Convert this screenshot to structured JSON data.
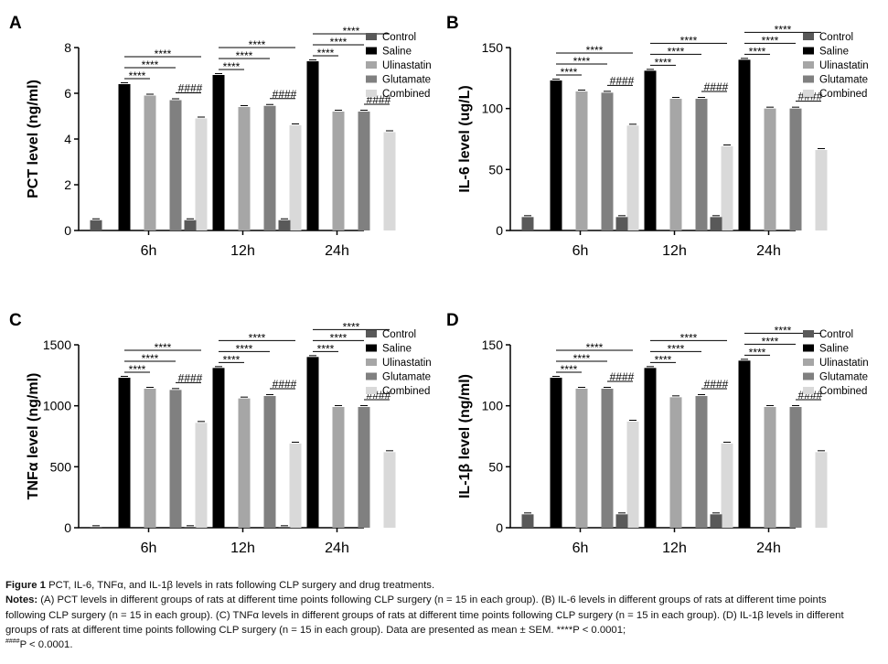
{
  "chart_data": [
    {
      "panel": "A",
      "type": "bar",
      "ylabel": "PCT level (ng/ml)",
      "ylim": [
        0,
        8
      ],
      "yticks": [
        0,
        2,
        4,
        6,
        8
      ],
      "categories": [
        "6h",
        "12h",
        "24h"
      ],
      "series": [
        {
          "name": "Control",
          "color": "#595959",
          "values": [
            0.45,
            0.45,
            0.45
          ]
        },
        {
          "name": "Saline",
          "color": "#000000",
          "values": [
            6.4,
            6.8,
            7.4
          ]
        },
        {
          "name": "Ulinastatin",
          "color": "#a6a6a6",
          "values": [
            5.9,
            5.4,
            5.2
          ]
        },
        {
          "name": "Glutamate",
          "color": "#808080",
          "values": [
            5.7,
            5.45,
            5.2
          ]
        },
        {
          "name": "Combined",
          "color": "#d9d9d9",
          "values": [
            4.9,
            4.6,
            4.3
          ]
        }
      ],
      "annotations": [
        "****",
        "****",
        "****",
        "####"
      ]
    },
    {
      "panel": "B",
      "type": "bar",
      "ylabel": "IL-6 level (ug/L)",
      "ylim": [
        0,
        150
      ],
      "yticks": [
        0,
        50,
        100,
        150
      ],
      "categories": [
        "6h",
        "12h",
        "24h"
      ],
      "series": [
        {
          "name": "Control",
          "color": "#595959",
          "values": [
            11,
            11,
            11
          ]
        },
        {
          "name": "Saline",
          "color": "#000000",
          "values": [
            123,
            131,
            140
          ]
        },
        {
          "name": "Ulinastatin",
          "color": "#a6a6a6",
          "values": [
            114,
            108,
            100
          ]
        },
        {
          "name": "Glutamate",
          "color": "#808080",
          "values": [
            113,
            108,
            100
          ]
        },
        {
          "name": "Combined",
          "color": "#d9d9d9",
          "values": [
            86,
            69,
            66
          ]
        }
      ],
      "annotations": [
        "****",
        "****",
        "****",
        "####"
      ]
    },
    {
      "panel": "C",
      "type": "bar",
      "ylabel": "TNFα level (ng/ml)",
      "ylim": [
        0,
        1500
      ],
      "yticks": [
        0,
        500,
        1000,
        1500
      ],
      "categories": [
        "6h",
        "12h",
        "24h"
      ],
      "series": [
        {
          "name": "Control",
          "color": "#595959",
          "values": [
            5,
            5,
            5
          ]
        },
        {
          "name": "Saline",
          "color": "#000000",
          "values": [
            1230,
            1310,
            1400
          ]
        },
        {
          "name": "Ulinastatin",
          "color": "#a6a6a6",
          "values": [
            1140,
            1060,
            990
          ]
        },
        {
          "name": "Glutamate",
          "color": "#808080",
          "values": [
            1130,
            1080,
            990
          ]
        },
        {
          "name": "Combined",
          "color": "#d9d9d9",
          "values": [
            860,
            690,
            620
          ]
        }
      ],
      "annotations": [
        "****",
        "****",
        "****",
        "####"
      ]
    },
    {
      "panel": "D",
      "type": "bar",
      "ylabel": "IL-1β level (ng/ml)",
      "ylim": [
        0,
        150
      ],
      "yticks": [
        0,
        50,
        100,
        150
      ],
      "categories": [
        "6h",
        "12h",
        "24h"
      ],
      "series": [
        {
          "name": "Control",
          "color": "#595959",
          "values": [
            11,
            11,
            11
          ]
        },
        {
          "name": "Saline",
          "color": "#000000",
          "values": [
            123,
            131,
            137
          ]
        },
        {
          "name": "Ulinastatin",
          "color": "#a6a6a6",
          "values": [
            114,
            107,
            99
          ]
        },
        {
          "name": "Glutamate",
          "color": "#808080",
          "values": [
            114,
            108,
            99
          ]
        },
        {
          "name": "Combined",
          "color": "#d9d9d9",
          "values": [
            87,
            69,
            62
          ]
        }
      ],
      "annotations": [
        "****",
        "****",
        "****",
        "####"
      ]
    }
  ],
  "caption": {
    "figure_label": "Figure 1",
    "title": " PCT, IL-6, TNFα, and IL-1β levels in rats following CLP surgery and drug treatments.",
    "notes_label": "Notes:",
    "notes_text": " (A) PCT levels in different groups of rats at different time points following CLP surgery (n = 15 in each group). (B) IL-6 levels in different groups of rats at different time points following CLP surgery (n = 15 in each group). (C) TNFα levels in different groups of rats at different time points following CLP surgery (n = 15 in each group). (D) IL-1β levels in different groups of rats at different time points following CLP surgery (n = 15 in each group). Data are presented as mean ± SEM. ****P < 0.0001;",
    "hash_sup": "####",
    "hash_text": "P < 0.0001."
  }
}
